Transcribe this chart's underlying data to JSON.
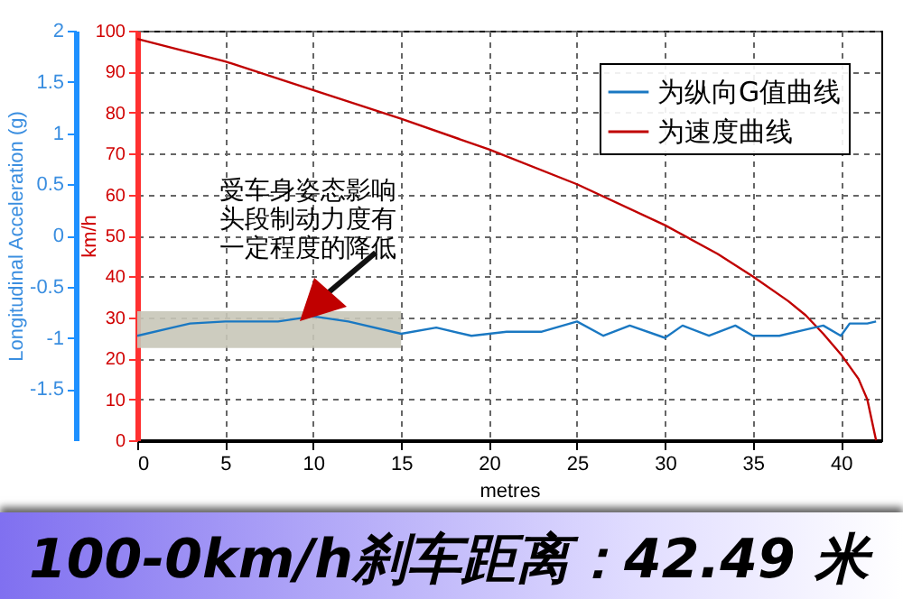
{
  "chart_data": {
    "type": "line",
    "title": "100-0km/h刹车距离：42.49 米",
    "xlabel": "metres",
    "ylabel": "km/h",
    "y2label": "Longitudinal Acceleration (g)",
    "xlim": [
      0,
      42.3
    ],
    "xticks": [
      0,
      5,
      10,
      15,
      20,
      25,
      30,
      35,
      40
    ],
    "ylim": [
      0,
      100
    ],
    "yticks": [
      0,
      10,
      20,
      30,
      40,
      50,
      60,
      70,
      80,
      90,
      100
    ],
    "y2lim": [
      -2,
      2
    ],
    "y2ticks": [
      -1.5,
      -1,
      -0.5,
      0,
      0.5,
      1,
      1.5,
      2
    ],
    "grid": true,
    "legend": "top right",
    "line_style": "solid",
    "series": [
      {
        "name": "为纵向G值曲线",
        "color": "#1a78c2",
        "axis": "y2",
        "x": [
          0,
          2,
          3,
          5,
          8,
          10,
          12,
          15,
          17,
          19,
          21,
          23,
          25,
          26.5,
          28,
          30,
          31,
          32.5,
          34,
          35,
          36.5,
          38,
          39,
          40,
          40.5,
          41.5,
          42
        ],
        "values": [
          -0.98,
          -0.9,
          -0.86,
          -0.84,
          -0.84,
          -0.79,
          -0.84,
          -0.96,
          -0.9,
          -0.98,
          -0.94,
          -0.94,
          -0.84,
          -0.98,
          -0.88,
          -1,
          -0.88,
          -0.98,
          -0.88,
          -0.98,
          -0.98,
          -0.92,
          -0.88,
          -0.98,
          -0.86,
          -0.86,
          -0.84
        ]
      },
      {
        "name": "为速度曲线",
        "color": "#c00000",
        "x": [
          0,
          5,
          10,
          15,
          20,
          25,
          30,
          33,
          35,
          37,
          38,
          39,
          40,
          41,
          41.5,
          42
        ],
        "values": [
          98,
          92.5,
          85.5,
          78.5,
          71,
          62.5,
          52.5,
          45.5,
          40,
          34,
          30.5,
          26,
          21,
          15,
          10,
          0
        ]
      }
    ],
    "bands": [
      {
        "axis": "x",
        "from": 0,
        "to": 15,
        "color": "#c8c6b8"
      }
    ],
    "annotations": [
      {
        "text": "受车身姿态影响头段制动力度有一定程度的降低",
        "x": 10.3,
        "y": 30.5
      }
    ]
  }
}
